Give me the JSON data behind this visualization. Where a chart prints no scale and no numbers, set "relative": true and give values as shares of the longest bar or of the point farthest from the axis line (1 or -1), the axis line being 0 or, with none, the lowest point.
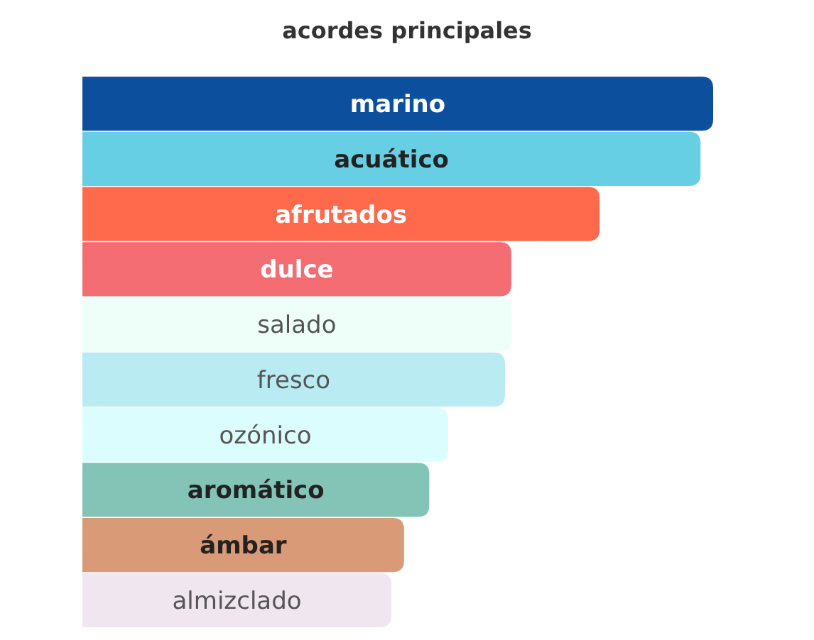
{
  "chart_data": {
    "type": "bar",
    "title": "acordes principales",
    "orientation": "horizontal",
    "relative": true,
    "categories": [
      "marino",
      "acuático",
      "afrutados",
      "dulce",
      "salado",
      "fresco",
      "ozónico",
      "aromático",
      "ámbar",
      "almizclado"
    ],
    "values": [
      1,
      0.98,
      0.82,
      0.68,
      0.68,
      0.67,
      0.58,
      0.55,
      0.51,
      0.49
    ],
    "colors": [
      "#0c4f9c",
      "#66cfe3",
      "#ff6a4d",
      "#f46d72",
      "#eefff9",
      "#b8ebf2",
      "#dcfdfd",
      "#84c4b6",
      "#d99a78",
      "#f0e6f0"
    ]
  }
}
